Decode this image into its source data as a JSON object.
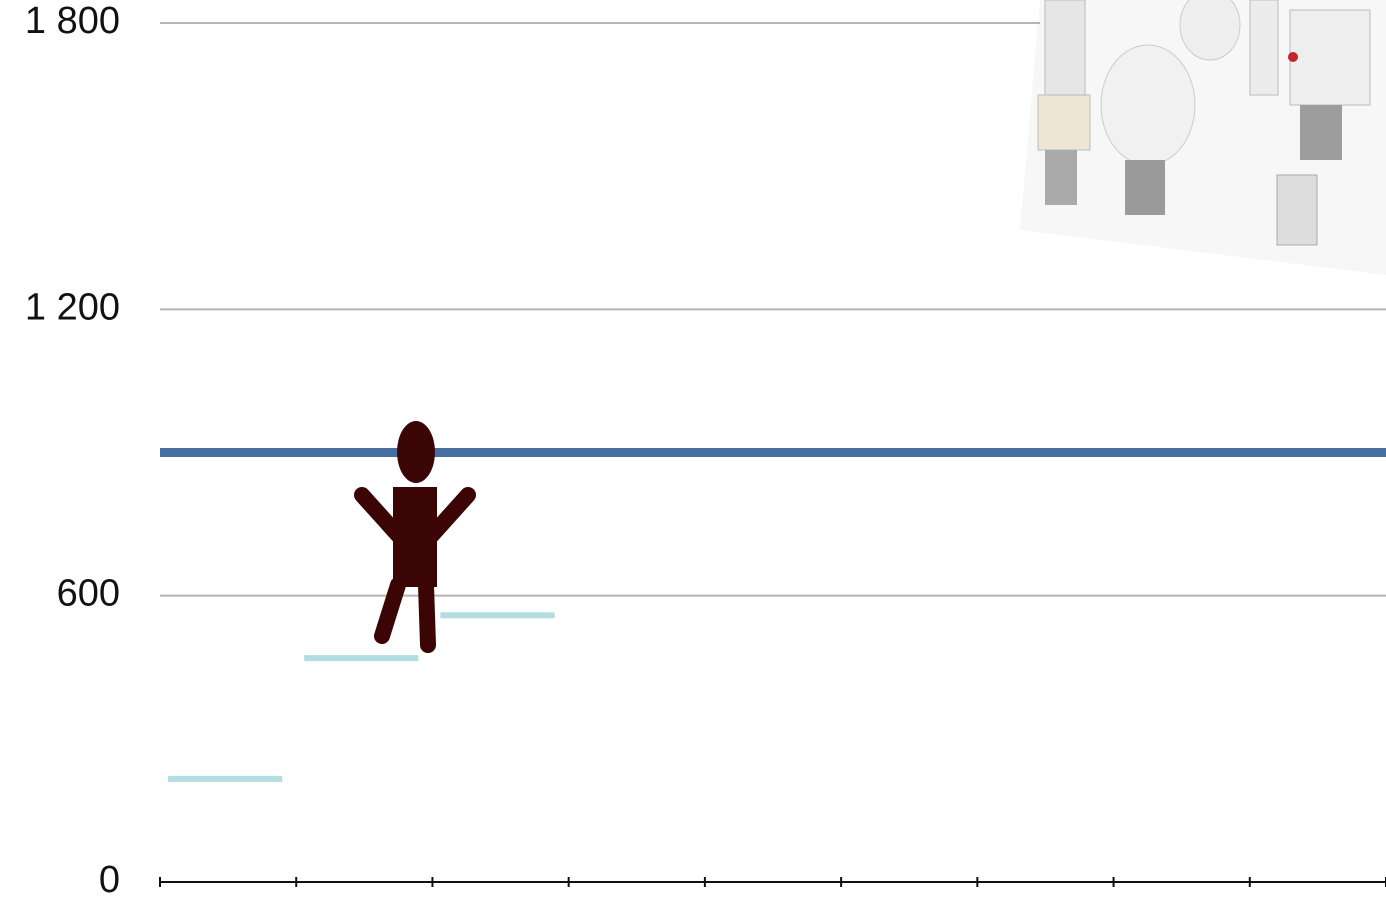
{
  "chart_data": {
    "type": "step",
    "categories": [
      null,
      null,
      null,
      null,
      null,
      null,
      null,
      null,
      null
    ],
    "values": [
      216,
      469,
      559,
      null,
      null,
      null,
      null,
      null,
      null
    ],
    "color": "#b3dde0",
    "reference_line": {
      "value": 900,
      "color": "#46709f"
    },
    "ylim": [
      0,
      1800
    ],
    "yticks": [
      0,
      600,
      {
        "value": 1200,
        "label": "1 200"
      },
      {
        "value": 1800,
        "label": "1 800"
      }
    ],
    "grid": true
  }
}
